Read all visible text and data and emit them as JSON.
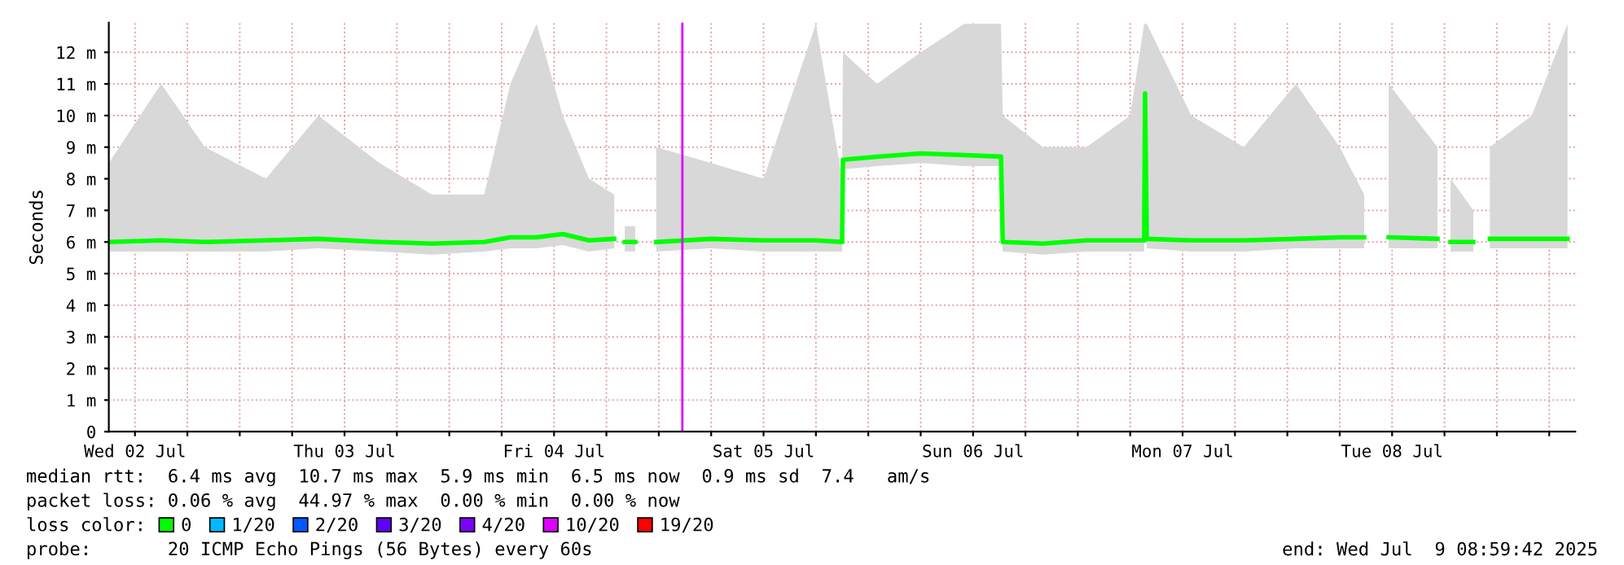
{
  "chart_data": {
    "type": "line",
    "ylabel": "Seconds",
    "xlim": [
      "2025-07-02T09:00",
      "2025-07-09T08:59"
    ],
    "ylim": [
      0,
      12.94
    ],
    "xticks": [
      {
        "value": "2025-07-02T12:00",
        "label": "Wed 02 Jul"
      },
      {
        "value": "2025-07-03T12:00",
        "label": "Thu 03 Jul"
      },
      {
        "value": "2025-07-04T12:00",
        "label": "Fri 04 Jul"
      },
      {
        "value": "2025-07-05T12:00",
        "label": "Sat 05 Jul"
      },
      {
        "value": "2025-07-06T12:00",
        "label": "Sun 06 Jul"
      },
      {
        "value": "2025-07-07T12:00",
        "label": "Mon 07 Jul"
      },
      {
        "value": "2025-07-08T12:00",
        "label": "Tue 08 Jul"
      },
      {
        "value": "2025-07-02T18:00",
        "label": null
      },
      {
        "value": "2025-07-03T00:00",
        "label": null
      },
      {
        "value": "2025-07-03T06:00",
        "label": null
      },
      {
        "value": "2025-07-03T18:00",
        "label": null
      },
      {
        "value": "2025-07-04T00:00",
        "label": null
      },
      {
        "value": "2025-07-04T06:00",
        "label": null
      },
      {
        "value": "2025-07-04T18:00",
        "label": null
      },
      {
        "value": "2025-07-05T00:00",
        "label": null
      },
      {
        "value": "2025-07-05T06:00",
        "label": null
      },
      {
        "value": "2025-07-05T18:00",
        "label": null
      },
      {
        "value": "2025-07-06T00:00",
        "label": null
      },
      {
        "value": "2025-07-06T06:00",
        "label": null
      },
      {
        "value": "2025-07-06T18:00",
        "label": null
      },
      {
        "value": "2025-07-07T00:00",
        "label": null
      },
      {
        "value": "2025-07-07T06:00",
        "label": null
      },
      {
        "value": "2025-07-07T18:00",
        "label": null
      },
      {
        "value": "2025-07-08T00:00",
        "label": null
      },
      {
        "value": "2025-07-08T06:00",
        "label": null
      },
      {
        "value": "2025-07-08T18:00",
        "label": null
      },
      {
        "value": "2025-07-09T00:00",
        "label": null
      },
      {
        "value": "2025-07-09T06:00",
        "label": null
      }
    ],
    "yticks": [
      0,
      {
        "value": 1,
        "label": "1 m"
      },
      {
        "value": 2,
        "label": "2 m"
      },
      {
        "value": 3,
        "label": "3 m"
      },
      {
        "value": 4,
        "label": "4 m"
      },
      {
        "value": 5,
        "label": "5 m"
      },
      {
        "value": 6,
        "label": "6 m"
      },
      {
        "value": 7,
        "label": "7 m"
      },
      {
        "value": 8,
        "label": "8 m"
      },
      {
        "value": 9,
        "label": "9 m"
      },
      {
        "value": 10,
        "label": "10 m"
      },
      {
        "value": 11,
        "label": "11 m"
      },
      {
        "value": 12,
        "label": "12 m"
      }
    ],
    "grid": true,
    "legend": "bottom",
    "series": [
      {
        "name": "0",
        "color": "#00ff00",
        "x": [
          "2025-07-02T09:00",
          "2025-07-02T15:00",
          "2025-07-02T20:00",
          "2025-07-03T03:00",
          "2025-07-03T09:00",
          "2025-07-03T16:00",
          "2025-07-03T22:00",
          "2025-07-04T04:00",
          "2025-07-04T07:00",
          "2025-07-04T10:00",
          "2025-07-04T13:00",
          "2025-07-04T16:00",
          "2025-07-04T18:54",
          "2025-07-04T19:30",
          "2025-07-04T20:06",
          "2025-07-04T21:18",
          "2025-07-04T21:30",
          "2025-07-04T23:42",
          "2025-07-05T06:00",
          "2025-07-05T12:00",
          "2025-07-05T18:00",
          "2025-07-05T21:00",
          "2025-07-05T21:06",
          "2025-07-06T01:00",
          "2025-07-06T06:00",
          "2025-07-06T11:00",
          "2025-07-06T15:12",
          "2025-07-06T15:24",
          "2025-07-06T20:00",
          "2025-07-07T01:00",
          "2025-07-07T06:00",
          "2025-07-07T07:36",
          "2025-07-07T07:42",
          "2025-07-07T07:54",
          "2025-07-07T13:00",
          "2025-07-07T19:00",
          "2025-07-08T01:00",
          "2025-07-08T06:00",
          "2025-07-08T08:48",
          "2025-07-08T10:00",
          "2025-07-08T11:36",
          "2025-07-08T17:12",
          "2025-07-08T18:00",
          "2025-07-08T18:42",
          "2025-07-08T21:18",
          "2025-07-08T22:00",
          "2025-07-08T23:12",
          "2025-07-09T04:00",
          "2025-07-09T08:06"
        ],
        "values": [
          6.0,
          6.05,
          6.0,
          6.05,
          6.1,
          6.0,
          5.95,
          6.0,
          6.15,
          6.15,
          6.25,
          6.05,
          6.1,
          null,
          6.0,
          6.0,
          null,
          6.0,
          6.1,
          6.05,
          6.05,
          6.0,
          8.6,
          8.7,
          8.8,
          8.75,
          8.7,
          6.0,
          5.95,
          6.05,
          6.05,
          6.05,
          10.7,
          6.1,
          6.05,
          6.05,
          6.1,
          6.15,
          6.15,
          null,
          6.15,
          6.1,
          null,
          6.0,
          6.0,
          null,
          6.1,
          6.1,
          6.1
        ],
        "lower": [
          5.7,
          5.7,
          5.7,
          5.7,
          5.8,
          5.7,
          5.6,
          5.7,
          5.8,
          5.8,
          5.9,
          5.7,
          5.8,
          null,
          5.7,
          5.7,
          null,
          5.7,
          5.8,
          5.7,
          5.7,
          5.7,
          8.3,
          8.4,
          8.5,
          8.4,
          8.4,
          5.7,
          5.6,
          5.7,
          5.7,
          5.7,
          9.0,
          5.8,
          5.7,
          5.7,
          5.8,
          5.8,
          5.8,
          null,
          5.8,
          5.8,
          null,
          5.7,
          5.7,
          null,
          5.8,
          5.8,
          5.8
        ],
        "upper": [
          8.5,
          11.0,
          9.0,
          8.0,
          10.0,
          8.5,
          7.5,
          7.5,
          11.0,
          12.9,
          10.0,
          8.0,
          7.5,
          null,
          6.5,
          6.5,
          null,
          9.0,
          8.5,
          8.0,
          12.9,
          8.0,
          12.0,
          11.0,
          12.0,
          12.9,
          12.9,
          10.0,
          9.0,
          9.0,
          10.0,
          12.9,
          12.9,
          12.9,
          10.0,
          9.0,
          11.0,
          9.0,
          7.5,
          null,
          11.0,
          9.0,
          null,
          8.0,
          7.0,
          null,
          9.0,
          10.0,
          12.9
        ]
      },
      {
        "name": "1/20",
        "color": "#00b8ff"
      },
      {
        "name": "2/20",
        "color": "#0059ff"
      },
      {
        "name": "3/20",
        "color": "#5e00ff"
      },
      {
        "name": "4/20",
        "color": "#7e00ff"
      },
      {
        "name": "10/20",
        "color": "#dd00ff"
      },
      {
        "name": "19/20",
        "color": "#ff0000"
      }
    ],
    "ref_lines": [
      {
        "axis": "x",
        "value": "2025-07-05T02:42",
        "label": null,
        "color": "#dd00ff"
      }
    ],
    "annotations": [
      "median rtt:  6.4 ms avg  10.7 ms max  5.9 ms min  6.5 ms now  0.9 ms sd  7.4   am/s",
      "packet loss: 0.06 % avg  44.97 % max  0.00 % min  0.00 % now",
      "loss color:",
      "probe:       20 ICMP Echo Pings (56 Bytes) every 60s",
      "end: Wed Jul  9 08:59:42 2025"
    ]
  }
}
